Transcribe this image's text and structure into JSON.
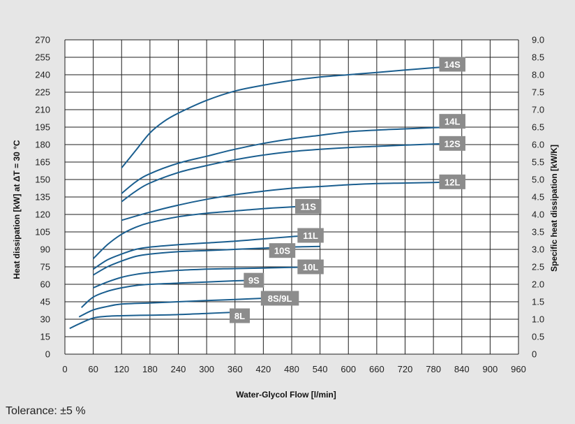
{
  "chart_data": {
    "type": "line",
    "xlabel": "Water-Glycol Flow [l/min]",
    "ylabel": "Heat dissipation [kW] at ΔT = 30 °C",
    "y2label": "Specific heat dissipation [kW/K]",
    "xlim": [
      0,
      960
    ],
    "ylim": [
      0,
      270
    ],
    "y2lim": [
      0,
      9.0
    ],
    "x_ticks": [
      0,
      60,
      120,
      180,
      240,
      300,
      360,
      420,
      480,
      540,
      600,
      660,
      720,
      780,
      840,
      900,
      960
    ],
    "y_ticks": [
      0,
      15,
      30,
      45,
      60,
      75,
      90,
      105,
      120,
      135,
      150,
      165,
      180,
      195,
      210,
      225,
      240,
      255,
      270
    ],
    "y2_ticks": [
      "0",
      "0.5",
      "1.0",
      "1.5",
      "2.0",
      "2.5",
      "3.0",
      "3.5",
      "4.0",
      "4.5",
      "5.0",
      "5.5",
      "6.0",
      "6.5",
      "7.0",
      "7.5",
      "8.0",
      "8.5",
      "9.0"
    ],
    "grid": true,
    "series": [
      {
        "name": "14S",
        "points": [
          [
            120,
            160
          ],
          [
            150,
            175
          ],
          [
            180,
            190
          ],
          [
            210,
            200
          ],
          [
            240,
            207
          ],
          [
            300,
            218
          ],
          [
            360,
            226
          ],
          [
            420,
            231
          ],
          [
            480,
            235
          ],
          [
            540,
            238
          ],
          [
            600,
            240
          ],
          [
            660,
            242
          ],
          [
            720,
            244
          ],
          [
            780,
            246
          ],
          [
            820,
            247
          ]
        ]
      },
      {
        "name": "14L",
        "points": [
          [
            120,
            138
          ],
          [
            150,
            148
          ],
          [
            180,
            155
          ],
          [
            240,
            164
          ],
          [
            300,
            170
          ],
          [
            360,
            176
          ],
          [
            420,
            181
          ],
          [
            480,
            185
          ],
          [
            540,
            188
          ],
          [
            600,
            191
          ],
          [
            660,
            192.5
          ],
          [
            720,
            193.5
          ],
          [
            780,
            194.5
          ],
          [
            820,
            195
          ]
        ]
      },
      {
        "name": "12S",
        "points": [
          [
            120,
            131
          ],
          [
            150,
            140
          ],
          [
            180,
            147
          ],
          [
            240,
            156
          ],
          [
            300,
            162
          ],
          [
            360,
            167
          ],
          [
            420,
            171
          ],
          [
            480,
            174
          ],
          [
            540,
            176
          ],
          [
            600,
            177.5
          ],
          [
            660,
            178.5
          ],
          [
            720,
            179.5
          ],
          [
            780,
            180.5
          ],
          [
            820,
            181
          ]
        ]
      },
      {
        "name": "12L",
        "points": [
          [
            120,
            115
          ],
          [
            180,
            122
          ],
          [
            240,
            128
          ],
          [
            300,
            133
          ],
          [
            360,
            137
          ],
          [
            420,
            140
          ],
          [
            480,
            142.5
          ],
          [
            540,
            144
          ],
          [
            600,
            145.5
          ],
          [
            660,
            146.5
          ],
          [
            720,
            147
          ],
          [
            780,
            147.5
          ],
          [
            820,
            148
          ]
        ]
      },
      {
        "name": "11S",
        "points": [
          [
            60,
            82
          ],
          [
            90,
            94
          ],
          [
            120,
            103
          ],
          [
            150,
            109
          ],
          [
            180,
            113
          ],
          [
            240,
            118
          ],
          [
            300,
            121
          ],
          [
            360,
            123
          ],
          [
            420,
            125
          ],
          [
            480,
            126.5
          ],
          [
            515,
            127
          ]
        ]
      },
      {
        "name": "11L",
        "points": [
          [
            60,
            73
          ],
          [
            90,
            81
          ],
          [
            120,
            86
          ],
          [
            150,
            90
          ],
          [
            180,
            92
          ],
          [
            240,
            94
          ],
          [
            300,
            95.5
          ],
          [
            360,
            97
          ],
          [
            420,
            99
          ],
          [
            480,
            101
          ],
          [
            520,
            102
          ]
        ]
      },
      {
        "name": "10S",
        "points": [
          [
            60,
            68
          ],
          [
            90,
            75
          ],
          [
            120,
            80
          ],
          [
            150,
            84
          ],
          [
            180,
            86
          ],
          [
            240,
            88
          ],
          [
            300,
            89
          ],
          [
            360,
            90
          ],
          [
            420,
            91
          ],
          [
            480,
            92
          ],
          [
            540,
            92.5
          ]
        ]
      },
      {
        "name": "10L",
        "points": [
          [
            60,
            57
          ],
          [
            90,
            62
          ],
          [
            120,
            66
          ],
          [
            150,
            68.5
          ],
          [
            180,
            70
          ],
          [
            240,
            72
          ],
          [
            300,
            73
          ],
          [
            360,
            73.5
          ],
          [
            420,
            74
          ],
          [
            480,
            74.5
          ],
          [
            520,
            75
          ]
        ]
      },
      {
        "name": "9S",
        "points": [
          [
            35,
            40
          ],
          [
            60,
            49
          ],
          [
            90,
            54
          ],
          [
            120,
            57
          ],
          [
            150,
            59
          ],
          [
            180,
            60
          ],
          [
            240,
            61
          ],
          [
            300,
            62
          ],
          [
            360,
            63
          ],
          [
            400,
            63.5
          ]
        ]
      },
      {
        "name": "8S/9L",
        "points": [
          [
            30,
            32
          ],
          [
            60,
            38
          ],
          [
            90,
            41
          ],
          [
            120,
            43
          ],
          [
            180,
            44
          ],
          [
            240,
            45
          ],
          [
            300,
            46
          ],
          [
            360,
            47
          ],
          [
            420,
            48
          ],
          [
            460,
            48.5
          ]
        ]
      },
      {
        "name": "8L",
        "points": [
          [
            10,
            22
          ],
          [
            30,
            26
          ],
          [
            60,
            31
          ],
          [
            90,
            32.5
          ],
          [
            120,
            33
          ],
          [
            180,
            33.5
          ],
          [
            240,
            34
          ],
          [
            300,
            35
          ],
          [
            360,
            36
          ]
        ]
      }
    ],
    "labels": [
      {
        "name": "14S",
        "text": "14S",
        "x": 820,
        "y": 249
      },
      {
        "name": "14L",
        "text": "14L",
        "x": 820,
        "y": 200
      },
      {
        "name": "12S",
        "text": "12S",
        "x": 820,
        "y": 181
      },
      {
        "name": "12L",
        "text": "12L",
        "x": 820,
        "y": 148
      },
      {
        "name": "11S",
        "text": "11S",
        "x": 515,
        "y": 127
      },
      {
        "name": "11L",
        "text": "11L",
        "x": 520,
        "y": 102
      },
      {
        "name": "10S",
        "text": "10S",
        "x": 460,
        "y": 89
      },
      {
        "name": "10L",
        "text": "10L",
        "x": 520,
        "y": 75
      },
      {
        "name": "9S",
        "text": "9S",
        "x": 400,
        "y": 63.5
      },
      {
        "name": "8S/9L",
        "text": "8S/9L",
        "x": 455,
        "y": 48
      },
      {
        "name": "8L",
        "text": "8L",
        "x": 370,
        "y": 33
      }
    ],
    "colors": {
      "line": "#1a5e8f",
      "label_bg": "#8c8c8c",
      "grid": "#1e1e1e",
      "background": "#e6e6e6"
    }
  },
  "footer": {
    "tolerance": "Tolerance: ±5 %"
  }
}
